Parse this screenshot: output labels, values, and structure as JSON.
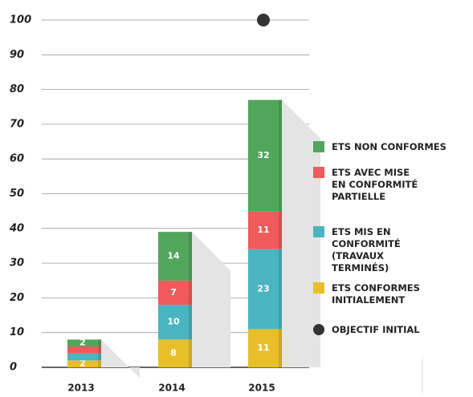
{
  "chart_data": {
    "type": "stacked_bar",
    "categories": [
      "2013",
      "2014",
      "2015"
    ],
    "series": [
      {
        "name": "ETS CONFORMES INITIALEMENT",
        "color": "#e8bf2a",
        "values": [
          2,
          8,
          11
        ],
        "value_labels": [
          "2",
          "8",
          "11"
        ]
      },
      {
        "name": "ETS MIS EN CONFORMITÉ (TRAVAUX TERMINÉS)",
        "color": "#4ab4c0",
        "values": [
          2,
          10,
          23
        ],
        "value_labels": [
          null,
          "10",
          "23"
        ]
      },
      {
        "name": "ETS AVEC MISE EN CONFORMITÉ PARTIELLE",
        "color": "#ef5a5a",
        "values": [
          2,
          7,
          11
        ],
        "value_labels": [
          null,
          "7",
          "11"
        ]
      },
      {
        "name": "ETS NON CONFORMES",
        "color": "#51a65b",
        "values": [
          2,
          14,
          32
        ],
        "value_labels": [
          "2",
          "14",
          "32"
        ]
      }
    ],
    "objective": {
      "name": "OBJECTIF INITIAL",
      "color": "#333333",
      "values": [
        null,
        null,
        100
      ]
    },
    "ylim": [
      0,
      100
    ],
    "yticks": [
      0,
      10,
      20,
      30,
      40,
      50,
      60,
      70,
      80,
      90,
      100
    ],
    "grid": true
  }
}
